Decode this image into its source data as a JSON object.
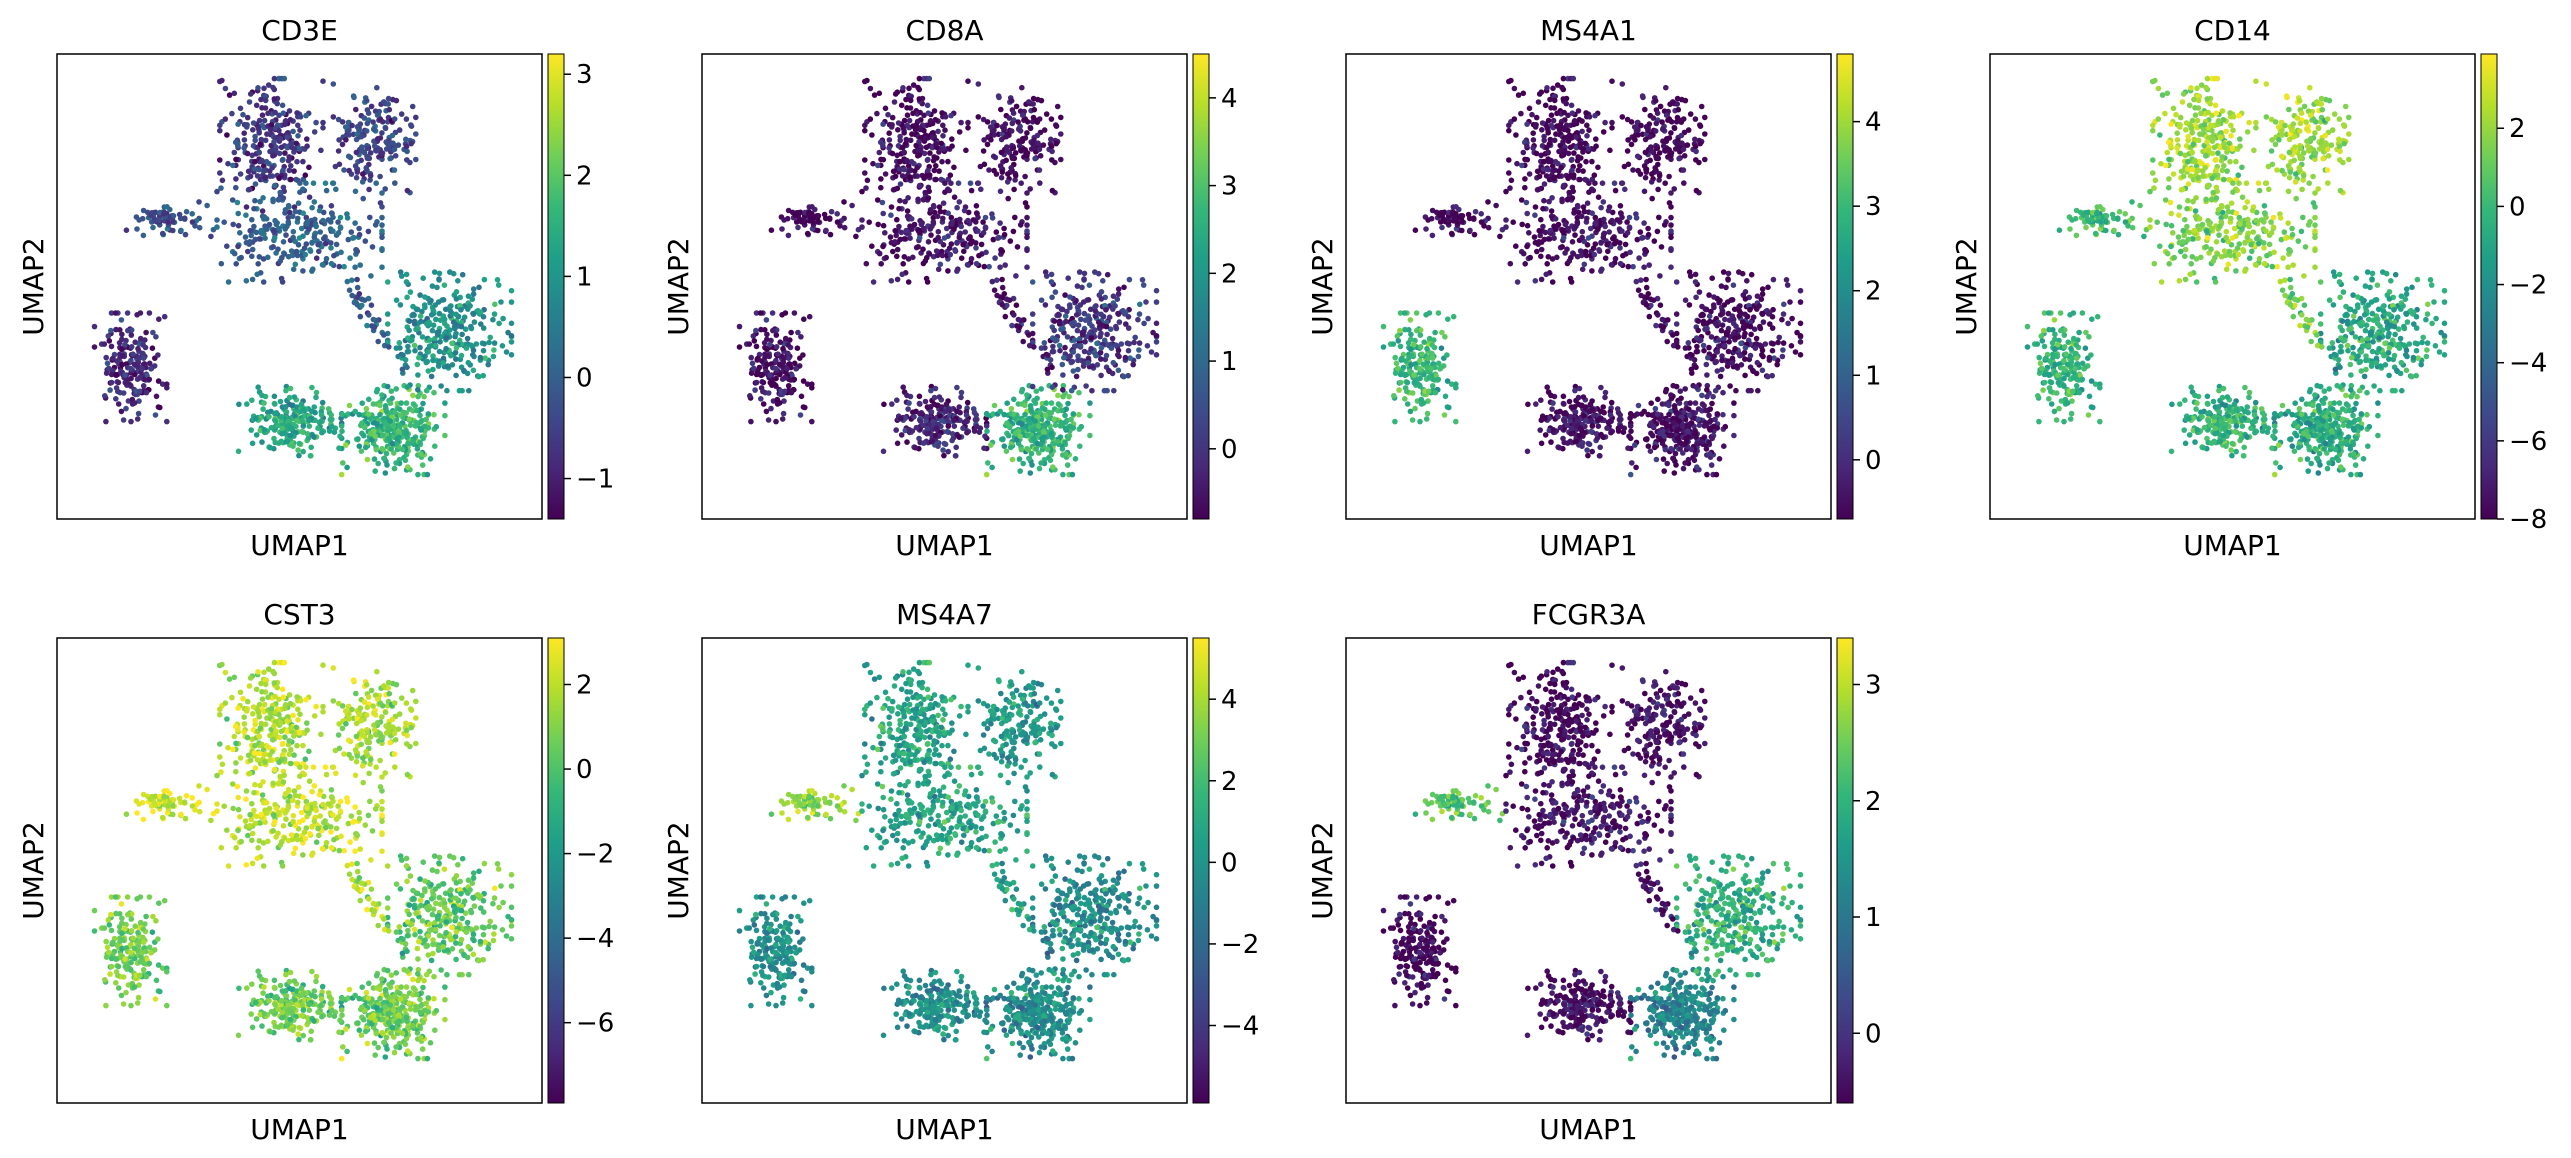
{
  "figure": {
    "xlabel": "UMAP1",
    "ylabel": "UMAP2"
  },
  "colormap": {
    "name": "viridis",
    "stops": [
      "#440154",
      "#482878",
      "#3e4989",
      "#31688e",
      "#26828e",
      "#1f9e89",
      "#35b779",
      "#6ece58",
      "#b5de2b",
      "#fde725"
    ]
  },
  "chart_data": [
    {
      "type": "scatter",
      "title": "CD3E",
      "xlabel": "UMAP1",
      "ylabel": "UMAP2",
      "colorbar": {
        "range": [
          -1.4,
          3.2
        ],
        "ticks": [
          -1,
          0,
          1,
          2,
          3
        ],
        "tick_labels": [
          "−1",
          "0",
          "1",
          "2",
          "3"
        ]
      },
      "cluster_values": {
        "tcell_left": -0.6,
        "tcell_right": -0.4,
        "left_arm": -0.2,
        "center": 0.0,
        "bcell": -0.9,
        "lower_left": 1.3,
        "lower_right": 1.6,
        "lower_arm": 0.9
      }
    },
    {
      "type": "scatter",
      "title": "CD8A",
      "xlabel": "UMAP1",
      "ylabel": "UMAP2",
      "colorbar": {
        "range": [
          -0.8,
          4.5
        ],
        "ticks": [
          0,
          1,
          2,
          3,
          4
        ],
        "tick_labels": [
          "0",
          "1",
          "2",
          "3",
          "4"
        ]
      },
      "cluster_values": {
        "tcell_left": -0.6,
        "tcell_right": -0.6,
        "left_arm": -0.6,
        "center": -0.5,
        "bcell": -0.6,
        "lower_left": -0.3,
        "lower_right": 2.6,
        "lower_arm": 0.0
      }
    },
    {
      "type": "scatter",
      "title": "MS4A1",
      "xlabel": "UMAP1",
      "ylabel": "UMAP2",
      "colorbar": {
        "range": [
          -0.7,
          4.8
        ],
        "ticks": [
          0,
          1,
          2,
          3,
          4
        ],
        "tick_labels": [
          "0",
          "1",
          "2",
          "3",
          "4"
        ]
      },
      "cluster_values": {
        "tcell_left": -0.6,
        "tcell_right": -0.6,
        "left_arm": -0.5,
        "center": -0.5,
        "bcell": 2.9,
        "lower_left": -0.5,
        "lower_right": -0.5,
        "lower_arm": -0.6
      }
    },
    {
      "type": "scatter",
      "title": "CD14",
      "xlabel": "UMAP1",
      "ylabel": "UMAP2",
      "colorbar": {
        "range": [
          -8.0,
          3.9
        ],
        "ticks": [
          -8,
          -6,
          -4,
          -2,
          0,
          2
        ],
        "tick_labels": [
          "−8",
          "−6",
          "−4",
          "−2",
          "0",
          "2"
        ]
      },
      "cluster_values": {
        "tcell_left": 2.3,
        "tcell_right": 2.2,
        "left_arm": 0.3,
        "center": 1.6,
        "bcell": -0.3,
        "lower_left": -0.4,
        "lower_right": -0.6,
        "lower_arm": -0.9
      }
    },
    {
      "type": "scatter",
      "title": "CST3",
      "xlabel": "UMAP1",
      "ylabel": "UMAP2",
      "colorbar": {
        "range": [
          -7.9,
          3.1
        ],
        "ticks": [
          -6,
          -4,
          -2,
          0,
          2
        ],
        "tick_labels": [
          "−6",
          "−4",
          "−2",
          "0",
          "2"
        ]
      },
      "cluster_values": {
        "tcell_left": 1.9,
        "tcell_right": 1.7,
        "left_arm": 2.6,
        "center": 2.0,
        "bcell": 0.6,
        "lower_left": 0.5,
        "lower_right": 0.6,
        "lower_arm": 0.3
      }
    },
    {
      "type": "scatter",
      "title": "MS4A7",
      "xlabel": "UMAP1",
      "ylabel": "UMAP2",
      "colorbar": {
        "range": [
          -5.9,
          5.5
        ],
        "ticks": [
          -4,
          -2,
          0,
          2,
          4
        ],
        "tick_labels": [
          "−4",
          "−2",
          "0",
          "2",
          "4"
        ]
      },
      "cluster_values": {
        "tcell_left": 0.9,
        "tcell_right": 0.3,
        "left_arm": 3.8,
        "center": 0.8,
        "bcell": -0.3,
        "lower_left": -0.3,
        "lower_right": -0.3,
        "lower_arm": -0.4
      }
    },
    {
      "type": "scatter",
      "title": "FCGR3A",
      "xlabel": "UMAP1",
      "ylabel": "UMAP2",
      "colorbar": {
        "range": [
          -0.6,
          3.4
        ],
        "ticks": [
          0,
          1,
          2,
          3
        ],
        "tick_labels": [
          "0",
          "1",
          "2",
          "3"
        ]
      },
      "cluster_values": {
        "tcell_left": -0.5,
        "tcell_right": -0.4,
        "left_arm": 2.4,
        "center": -0.4,
        "bcell": -0.6,
        "lower_left": -0.5,
        "lower_right": 1.2,
        "lower_arm": 1.9
      }
    }
  ]
}
